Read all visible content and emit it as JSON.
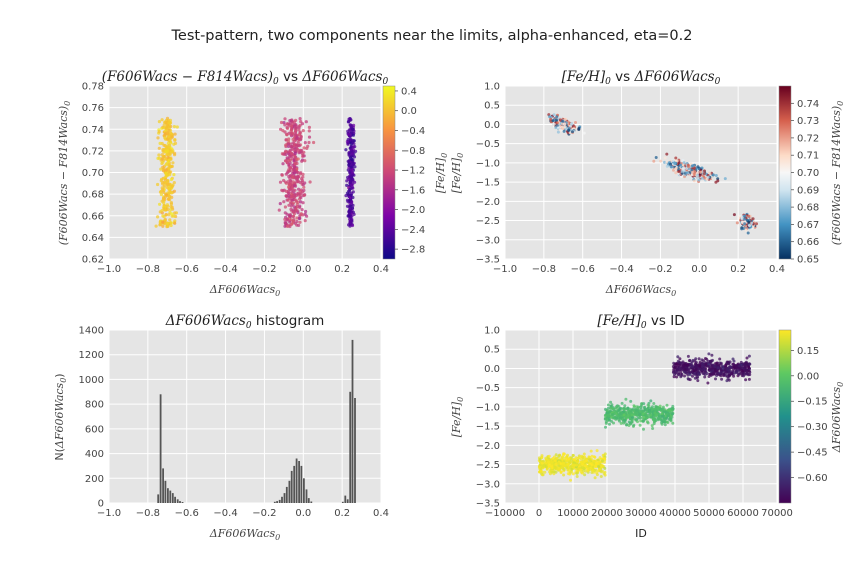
{
  "figure": {
    "suptitle": "Test-pattern, two components near the limits, alpha-enhanced, eta=0.2"
  },
  "panels": {
    "tl": {
      "title_math": "(F606Wacs − F814Wacs)",
      "title_sub": "0",
      "title_vs": " vs ",
      "title_delta": "ΔF606Wacs",
      "title_delta_sub": "0",
      "xlabel": "ΔF606Wacs",
      "xlabel_sub": "0",
      "ylabel": "(F606Wacs − F814Wacs)",
      "ylabel_sub": "0",
      "cbar_label": "[Fe/H]",
      "cbar_label_sub": "0",
      "xticks": [
        "−1.0",
        "−0.8",
        "−0.6",
        "−0.4",
        "−0.2",
        "0.0",
        "0.2",
        "0.4"
      ],
      "yticks": [
        "0.62",
        "0.64",
        "0.66",
        "0.68",
        "0.70",
        "0.72",
        "0.74",
        "0.76",
        "0.78"
      ],
      "cticks": [
        "0.4",
        "0.0",
        "−0.4",
        "−0.8",
        "−1.2",
        "−1.6",
        "−2.0",
        "−2.4",
        "−2.8"
      ]
    },
    "tr": {
      "title_math": "[Fe/H]",
      "title_sub": "0",
      "title_vs": " vs ",
      "title_delta": "ΔF606Wacs",
      "title_delta_sub": "0",
      "xlabel": "ΔF606Wacs",
      "xlabel_sub": "0",
      "ylabel": "[Fe/H]",
      "ylabel_sub": "0",
      "cbar_label": "(F606Wacs − F814Wacs)",
      "cbar_label_sub": "0",
      "xticks": [
        "−1.0",
        "−0.8",
        "−0.6",
        "−0.4",
        "−0.2",
        "0.0",
        "0.2",
        "0.4"
      ],
      "yticks": [
        "1.0",
        "0.5",
        "0.0",
        "−0.5",
        "−1.0",
        "−1.5",
        "−2.0",
        "−2.5",
        "−3.0",
        "−3.5"
      ],
      "cticks": [
        "0.74",
        "0.73",
        "0.72",
        "0.71",
        "0.70",
        "0.69",
        "0.68",
        "0.67",
        "0.66",
        "0.65"
      ]
    },
    "bl": {
      "title_delta": "ΔF606Wacs",
      "title_delta_sub": "0",
      "title_rest": " histogram",
      "xlabel": "ΔF606Wacs",
      "xlabel_sub": "0",
      "ylabel_pre": "N(",
      "ylabel_math": "ΔF606Wacs",
      "ylabel_sub": "0",
      "ylabel_post": ")",
      "xticks": [
        "−1.0",
        "−0.8",
        "−0.6",
        "−0.4",
        "−0.2",
        "0.0",
        "0.2",
        "0.4"
      ],
      "yticks": [
        "1400",
        "1200",
        "1000",
        "800",
        "600",
        "400",
        "200",
        "0"
      ]
    },
    "br": {
      "title_math": "[Fe/H]",
      "title_sub": "0",
      "title_rest": " vs ID",
      "xlabel": "ID",
      "ylabel": "[Fe/H]",
      "ylabel_sub": "0",
      "cbar_label": "ΔF606Wacs",
      "cbar_label_sub": "0",
      "xticks": [
        "−10000",
        "0",
        "10000",
        "20000",
        "30000",
        "40000",
        "50000",
        "60000",
        "70000"
      ],
      "yticks": [
        "1.0",
        "0.5",
        "0.0",
        "−0.5",
        "−1.0",
        "−1.5",
        "−2.0",
        "−2.5",
        "−3.0",
        "−3.5"
      ],
      "cticks": [
        "0.15",
        "0.00",
        "−0.15",
        "−0.30",
        "−0.45",
        "−0.60"
      ]
    }
  },
  "colors": {
    "axes_bg": "#e5e5e5",
    "grid": "#ffffff",
    "hist_bar": "#555555"
  },
  "chart_data": [
    {
      "type": "scatter",
      "panel": "tl",
      "colormap": "plasma",
      "xlim": [
        -1.0,
        0.4
      ],
      "ylim": [
        0.62,
        0.78
      ],
      "clim": [
        -3.0,
        0.5
      ],
      "clusters": [
        {
          "x_center": -0.7,
          "x_spread": 0.035,
          "y_range": [
            0.65,
            0.75
          ],
          "feh": 0.05
        },
        {
          "x_center": -0.05,
          "x_spread": 0.05,
          "y_range": [
            0.65,
            0.75
          ],
          "feh": -1.3
        },
        {
          "x_center": 0.245,
          "x_spread": 0.015,
          "y_range": [
            0.65,
            0.75
          ],
          "feh": -2.5
        }
      ]
    },
    {
      "type": "scatter",
      "panel": "tr",
      "colormap": "RdBu_r",
      "xlim": [
        -1.0,
        0.4
      ],
      "ylim": [
        -3.5,
        1.0
      ],
      "clim": [
        0.65,
        0.75
      ],
      "clusters": [
        {
          "x_center": -0.7,
          "y_center": 0.0,
          "slope": -1.6,
          "x_spread": 0.05,
          "y_spread": 0.08
        },
        {
          "x_center": -0.05,
          "y_center": -1.2,
          "slope": -1.6,
          "x_spread": 0.09,
          "y_spread": 0.08
        },
        {
          "x_center": 0.245,
          "y_center": -2.55,
          "slope": -1.6,
          "x_spread": 0.03,
          "y_spread": 0.08
        }
      ]
    },
    {
      "type": "bar",
      "panel": "bl",
      "xlim": [
        -1.0,
        0.4
      ],
      "ylim": [
        0,
        1400
      ],
      "bin_width": 0.0125,
      "bins": [
        {
          "x": -0.745,
          "count": 70
        },
        {
          "x": -0.733,
          "count": 880
        },
        {
          "x": -0.72,
          "count": 280
        },
        {
          "x": -0.708,
          "count": 180
        },
        {
          "x": -0.695,
          "count": 120
        },
        {
          "x": -0.683,
          "count": 100
        },
        {
          "x": -0.67,
          "count": 80
        },
        {
          "x": -0.658,
          "count": 50
        },
        {
          "x": -0.645,
          "count": 30
        },
        {
          "x": -0.633,
          "count": 15
        },
        {
          "x": -0.62,
          "count": 8
        },
        {
          "x": -0.145,
          "count": 10
        },
        {
          "x": -0.133,
          "count": 15
        },
        {
          "x": -0.12,
          "count": 25
        },
        {
          "x": -0.108,
          "count": 50
        },
        {
          "x": -0.095,
          "count": 80
        },
        {
          "x": -0.083,
          "count": 130
        },
        {
          "x": -0.07,
          "count": 180
        },
        {
          "x": -0.058,
          "count": 260
        },
        {
          "x": -0.045,
          "count": 300
        },
        {
          "x": -0.033,
          "count": 360
        },
        {
          "x": -0.02,
          "count": 340
        },
        {
          "x": -0.008,
          "count": 300
        },
        {
          "x": 0.005,
          "count": 200
        },
        {
          "x": 0.018,
          "count": 110
        },
        {
          "x": 0.03,
          "count": 40
        },
        {
          "x": 0.043,
          "count": 12
        },
        {
          "x": 0.205,
          "count": 10
        },
        {
          "x": 0.218,
          "count": 60
        },
        {
          "x": 0.23,
          "count": 30
        },
        {
          "x": 0.243,
          "count": 900
        },
        {
          "x": 0.255,
          "count": 1320
        },
        {
          "x": 0.268,
          "count": 850
        }
      ]
    },
    {
      "type": "scatter",
      "panel": "br",
      "colormap": "viridis",
      "xlim": [
        -10000,
        70000
      ],
      "ylim": [
        -3.5,
        1.0
      ],
      "clim": [
        -0.75,
        0.27
      ],
      "clusters": [
        {
          "id_range": [
            0,
            19500
          ],
          "feh": -2.5,
          "spread": 0.12,
          "delta": 0.245
        },
        {
          "id_range": [
            19500,
            39500
          ],
          "feh": -1.2,
          "spread": 0.12,
          "delta": -0.05
        },
        {
          "id_range": [
            39500,
            62000
          ],
          "feh": 0.0,
          "spread": 0.12,
          "delta": -0.7
        }
      ]
    }
  ]
}
